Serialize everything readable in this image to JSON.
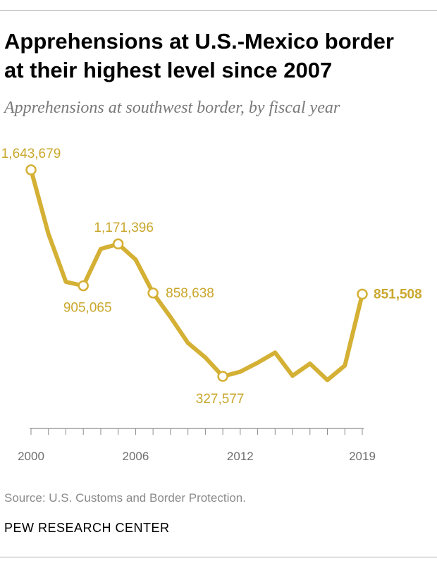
{
  "header": {
    "title_line1": "Apprehensions at U.S.-Mexico border",
    "title_line2": "at their highest level since 2007",
    "subtitle": "Apprehensions at southwest border, by fiscal year"
  },
  "footer": {
    "source": "Source: U.S. Customs and Border Protection.",
    "org": "PEW RESEARCH CENTER"
  },
  "colors": {
    "line": "#d4b034",
    "label": "#c9a72c",
    "axis": "#8c8c8c",
    "tick_label": "#6f6f6f"
  },
  "chart_data": {
    "type": "line",
    "title": "Apprehensions at U.S.-Mexico border at their highest level since 2007",
    "subtitle": "Apprehensions at southwest border, by fiscal year",
    "xlabel": "",
    "ylabel": "",
    "grid": false,
    "legend": "none",
    "xlim": [
      2000,
      2019
    ],
    "ylim": [
      0,
      1700000
    ],
    "x": [
      2000,
      2001,
      2002,
      2003,
      2004,
      2005,
      2006,
      2007,
      2008,
      2009,
      2010,
      2011,
      2012,
      2013,
      2014,
      2015,
      2016,
      2017,
      2018,
      2019
    ],
    "series": [
      {
        "name": "Apprehensions",
        "values": [
          1643679,
          1235718,
          929809,
          905065,
          1139282,
          1171396,
          1071972,
          858638,
          705005,
          540865,
          447731,
          327577,
          356873,
          414397,
          479371,
          331333,
          408870,
          303916,
          396579,
          851508
        ]
      }
    ],
    "x_tick_labels": [
      {
        "x": 2000,
        "label": "2000"
      },
      {
        "x": 2006,
        "label": "2006"
      },
      {
        "x": 2012,
        "label": "2012"
      },
      {
        "x": 2019,
        "label": "2019"
      }
    ],
    "annotations": [
      {
        "x": 2000,
        "label": "1,643,679",
        "bold": false
      },
      {
        "x": 2003,
        "label": "905,065",
        "bold": false
      },
      {
        "x": 2005,
        "label": "1,171,396",
        "bold": false
      },
      {
        "x": 2007,
        "label": "858,638",
        "bold": false
      },
      {
        "x": 2011,
        "label": "327,577",
        "bold": false
      },
      {
        "x": 2019,
        "label": "851,508",
        "bold": true
      }
    ]
  }
}
